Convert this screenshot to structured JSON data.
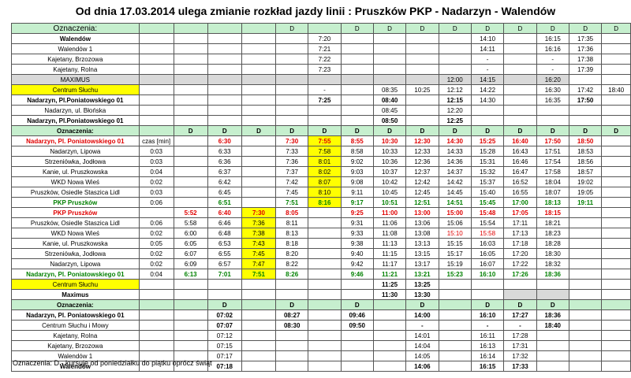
{
  "title": "Od dnia 17.03.2014 ulega zmianie rozkład jazdy linii : Pruszków PKP  - Nadarzyn - Walendów",
  "footnote": "Oznaczenia: D - kursuje od poniedziałku do piątku oprócz świąt",
  "colors": {
    "header_green": "#c6efce",
    "highlight_yellow": "#ffff00",
    "shade_grey": "#d9d9d9",
    "red": "#e00000",
    "green": "#008000"
  },
  "rows": [
    {
      "hdr": true,
      "cells": [
        {
          "t": "Oznaczenia:",
          "c": "big"
        },
        "",
        "",
        "",
        "",
        "",
        "D",
        "",
        "D",
        "D",
        "D",
        "D",
        "D",
        "D",
        "D",
        "D",
        "D"
      ]
    },
    {
      "cells": [
        {
          "t": "Walendów",
          "c": "b"
        },
        "",
        "",
        "",
        "",
        "",
        "7:20",
        "",
        "",
        "",
        "",
        "14:10",
        "",
        "16:15",
        "17:35",
        ""
      ]
    },
    {
      "cells": [
        "Walendów 1",
        "",
        "",
        "",
        "",
        "",
        "7:21",
        "",
        "",
        "",
        "",
        "14:11",
        "",
        "16:16",
        "17:36",
        ""
      ]
    },
    {
      "cells": [
        "Kajetany, Brzozowa",
        "",
        "",
        "",
        "",
        "",
        "7:22",
        "",
        "",
        "",
        "",
        "-",
        "",
        "-",
        "17:38",
        ""
      ]
    },
    {
      "cells": [
        "Kajetany, Rolna",
        "",
        "",
        "",
        "",
        "",
        "7:23",
        "",
        "",
        "",
        "",
        "-",
        "",
        "-",
        "17:39",
        ""
      ]
    },
    {
      "cells": [
        {
          "t": "MAXIMUS",
          "c": "gry"
        },
        {
          "t": "",
          "c": "gry"
        },
        {
          "t": "",
          "c": "gry"
        },
        {
          "t": "",
          "c": "gry"
        },
        {
          "t": "",
          "c": "gry"
        },
        {
          "t": "",
          "c": "gry"
        },
        {
          "t": "",
          "c": "gry"
        },
        {
          "t": "",
          "c": "gry"
        },
        {
          "t": "",
          "c": "gry"
        },
        {
          "t": "",
          "c": "gry"
        },
        {
          "t": "12:00",
          "c": "gry"
        },
        {
          "t": "14:15",
          "c": "gry"
        },
        {
          "t": "",
          "c": "gry"
        },
        {
          "t": "16:20",
          "c": "gry"
        },
        "",
        ""
      ]
    },
    {
      "cells": [
        {
          "t": "Centrum Słuchu",
          "c": "yel"
        },
        "",
        "",
        "",
        "",
        "",
        "-",
        "",
        "08:35",
        "10:25",
        "12:12",
        "14:22",
        "",
        "16:30",
        "17:42",
        "18:40"
      ]
    },
    {
      "cells": [
        {
          "t": "Nadarzyn, Pl.Poniatowskiego 01",
          "c": "b"
        },
        "",
        "",
        "",
        "",
        "",
        {
          "t": "7:25",
          "c": "b"
        },
        "",
        {
          "t": "08:40",
          "c": "b"
        },
        "",
        {
          "t": "12:15",
          "c": "b"
        },
        "14:30",
        "",
        "16:35",
        {
          "t": "17:50",
          "c": "b"
        },
        ""
      ]
    },
    {
      "cells": [
        "Nadarzyn, ul. Błońska",
        "",
        "",
        "",
        "",
        "",
        "",
        "",
        "08:45",
        "",
        "12:20",
        "",
        "",
        "",
        "",
        ""
      ]
    },
    {
      "cells": [
        {
          "t": "Nadarzyn, Pl.Poniatowskiego 01",
          "c": "b"
        },
        "",
        "",
        "",
        "",
        "",
        "",
        "",
        {
          "t": "08:50",
          "c": "b"
        },
        "",
        {
          "t": "12:25",
          "c": "b"
        },
        "",
        "",
        "",
        "",
        ""
      ]
    },
    {
      "hdr": true,
      "cells": [
        {
          "t": "Oznaczenia:",
          "c": "b"
        },
        "",
        {
          "t": "D",
          "c": "b"
        },
        {
          "t": "D",
          "c": "b"
        },
        {
          "t": "D",
          "c": "b"
        },
        {
          "t": "D",
          "c": "b"
        },
        {
          "t": "D",
          "c": "b"
        },
        {
          "t": "D",
          "c": "b"
        },
        {
          "t": "D",
          "c": "b"
        },
        {
          "t": "D",
          "c": "b"
        },
        {
          "t": "D",
          "c": "b"
        },
        {
          "t": "D",
          "c": "b"
        },
        {
          "t": "D",
          "c": "b"
        },
        {
          "t": "D",
          "c": "b"
        },
        {
          "t": "D",
          "c": "b"
        },
        {
          "t": "D",
          "c": "b"
        }
      ]
    },
    {
      "cells": [
        {
          "t": "Nadarzyn, Pl. Poniatowskiego 01",
          "c": "b red"
        },
        "czas [min]",
        "",
        {
          "t": "6:30",
          "c": "b red"
        },
        "",
        {
          "t": "7:30",
          "c": "b red"
        },
        {
          "t": "7:55",
          "c": "b red yel"
        },
        {
          "t": "8:55",
          "c": "b red"
        },
        {
          "t": "10:30",
          "c": "b red"
        },
        {
          "t": "12:30",
          "c": "b red"
        },
        {
          "t": "14:30",
          "c": "b red"
        },
        {
          "t": "15:25",
          "c": "b red"
        },
        {
          "t": "16:40",
          "c": "b red"
        },
        {
          "t": "17:50",
          "c": "b red"
        },
        {
          "t": "18:50",
          "c": "b red"
        },
        ""
      ]
    },
    {
      "cells": [
        "Nadarzyn, Lipowa",
        "0:03",
        "",
        "6:33",
        "",
        "7:33",
        {
          "t": "7:58",
          "c": "yel"
        },
        "8:58",
        "10:33",
        "12:33",
        "14:33",
        "15:28",
        "16:43",
        "17:51",
        "18:53",
        ""
      ]
    },
    {
      "cells": [
        "Strzeniówka, Jodłowa",
        "0:03",
        "",
        "6:36",
        "",
        "7:36",
        {
          "t": "8:01",
          "c": "yel"
        },
        "9:02",
        "10:36",
        "12:36",
        "14:36",
        "15:31",
        "16:46",
        "17:54",
        "18:56",
        ""
      ]
    },
    {
      "cells": [
        "Kanie, ul. Pruszkowska",
        "0:04",
        "",
        "6:37",
        "",
        "7:37",
        {
          "t": "8:02",
          "c": "yel"
        },
        "9:03",
        "10:37",
        "12:37",
        "14:37",
        "15:32",
        "16:47",
        "17:58",
        "18:57",
        ""
      ]
    },
    {
      "cells": [
        "WKD Nowa Wieś",
        "0:02",
        "",
        "6:42",
        "",
        "7:42",
        {
          "t": "8:07",
          "c": "yel"
        },
        "9:08",
        "10:42",
        "12:42",
        "14:42",
        "15:37",
        "16:52",
        "18:04",
        "19:02",
        ""
      ]
    },
    {
      "cells": [
        "Pruszków, Osiedle Staszica Lidl",
        "0:03",
        "",
        "6:45",
        "",
        "7:45",
        {
          "t": "8:10",
          "c": "yel"
        },
        "9:11",
        "10:45",
        "12:45",
        "14:45",
        "15:40",
        "16:55",
        "18:07",
        "19:05",
        ""
      ]
    },
    {
      "cells": [
        {
          "t": "PKP Pruszków",
          "c": "b gn"
        },
        "0:06",
        "",
        {
          "t": "6:51",
          "c": "b gn"
        },
        "",
        {
          "t": "7:51",
          "c": "b gn"
        },
        {
          "t": "8:16",
          "c": "b gn yel"
        },
        {
          "t": "9:17",
          "c": "b gn"
        },
        {
          "t": "10:51",
          "c": "b gn"
        },
        {
          "t": "12:51",
          "c": "b gn"
        },
        {
          "t": "14:51",
          "c": "b gn"
        },
        {
          "t": "15:45",
          "c": "b gn"
        },
        {
          "t": "17:00",
          "c": "b gn"
        },
        {
          "t": "18:13",
          "c": "b gn"
        },
        {
          "t": "19:11",
          "c": "b gn"
        },
        ""
      ]
    },
    {
      "cells": [
        {
          "t": "PKP Pruszków",
          "c": "b red"
        },
        "",
        {
          "t": "5:52",
          "c": "b red"
        },
        {
          "t": "6:40",
          "c": "b red"
        },
        {
          "t": "7:30",
          "c": "b red yel"
        },
        {
          "t": "8:05",
          "c": "b red"
        },
        "",
        {
          "t": "9:25",
          "c": "b red"
        },
        {
          "t": "11:00",
          "c": "b red"
        },
        {
          "t": "13:00",
          "c": "b red"
        },
        {
          "t": "15:00",
          "c": "b red"
        },
        {
          "t": "15:48",
          "c": "b red"
        },
        {
          "t": "17:05",
          "c": "b red"
        },
        {
          "t": "18:15",
          "c": "b red"
        },
        "",
        ""
      ]
    },
    {
      "cells": [
        "Pruszków, Osiedle Staszica Lidl",
        "0:06",
        "5:58",
        "6:46",
        {
          "t": "7:36",
          "c": "yel"
        },
        "8:11",
        "",
        "9:31",
        "11:06",
        "13:06",
        "15:06",
        "15:54",
        "17:11",
        "18:21",
        "",
        ""
      ]
    },
    {
      "cells": [
        "WKD Nowa Wieś",
        "0:02",
        "6:00",
        "6:48",
        {
          "t": "7:38",
          "c": "yel"
        },
        "8:13",
        "",
        "9:33",
        "11:08",
        "13:08",
        {
          "t": "15:10",
          "c": "red"
        },
        {
          "t": "15:58",
          "c": "red"
        },
        "17:13",
        "18:23",
        "",
        ""
      ]
    },
    {
      "cells": [
        "Kanie, ul. Pruszkowska",
        "0:05",
        "6:05",
        "6:53",
        {
          "t": "7:43",
          "c": "yel"
        },
        "8:18",
        "",
        "9:38",
        "11:13",
        "13:13",
        "15:15",
        "16:03",
        "17:18",
        "18:28",
        "",
        ""
      ]
    },
    {
      "cells": [
        "Strzeniówka, Jodłowa",
        "0:02",
        "6:07",
        "6:55",
        {
          "t": "7:45",
          "c": "yel"
        },
        "8:20",
        "",
        "9:40",
        "11:15",
        "13:15",
        "15:17",
        "16:05",
        "17:20",
        "18:30",
        "",
        ""
      ]
    },
    {
      "cells": [
        "Nadarzyn, Lipowa",
        "0:02",
        "6:09",
        "6:57",
        {
          "t": "7:47",
          "c": "yel"
        },
        "8:22",
        "",
        "9:42",
        "11:17",
        "13:17",
        "15:19",
        "16:07",
        "17:22",
        "18:32",
        "",
        ""
      ]
    },
    {
      "cells": [
        {
          "t": "Nadarzyn, Pl. Poniatowskiego 01",
          "c": "b gn"
        },
        "0:04",
        {
          "t": "6:13",
          "c": "b gn"
        },
        {
          "t": "7:01",
          "c": "b gn"
        },
        {
          "t": "7:51",
          "c": "b gn yel"
        },
        {
          "t": "8:26",
          "c": "b gn"
        },
        "",
        {
          "t": "9:46",
          "c": "b gn"
        },
        {
          "t": "11:21",
          "c": "b gn"
        },
        {
          "t": "13:21",
          "c": "b gn"
        },
        {
          "t": "15:23",
          "c": "b gn"
        },
        {
          "t": "16:10",
          "c": "b gn"
        },
        {
          "t": "17:26",
          "c": "b gn"
        },
        {
          "t": "18:36",
          "c": "b gn"
        },
        "",
        ""
      ]
    },
    {
      "cells": [
        {
          "t": "Centrum Słuchu",
          "c": "yel"
        },
        "",
        "",
        "",
        "",
        "",
        "",
        "",
        {
          "t": "11:25",
          "c": "b"
        },
        {
          "t": "13:25",
          "c": "b"
        },
        "",
        "",
        "",
        "",
        "",
        ""
      ]
    },
    {
      "cells": [
        {
          "t": "Maximus",
          "c": "b"
        },
        "",
        "",
        "",
        "",
        "",
        "",
        "",
        {
          "t": "11:30",
          "c": "b"
        },
        {
          "t": "13:30",
          "c": "b"
        },
        "",
        "",
        {
          "t": "",
          "c": "gry"
        },
        {
          "t": "",
          "c": "gry"
        },
        "",
        ""
      ]
    },
    {
      "hdr": true,
      "cells": [
        {
          "t": "Oznaczenia:",
          "c": "b"
        },
        "",
        "",
        {
          "t": "D",
          "c": "b"
        },
        "",
        {
          "t": "D",
          "c": "b"
        },
        "",
        {
          "t": "D",
          "c": "b"
        },
        "",
        {
          "t": "D",
          "c": "b"
        },
        "",
        {
          "t": "D",
          "c": "b"
        },
        {
          "t": "D",
          "c": "b"
        },
        {
          "t": "D",
          "c": "b"
        },
        "",
        ""
      ]
    },
    {
      "cells": [
        {
          "t": "Nadarzyn, Pl. Poniatowskiego 01",
          "c": "b"
        },
        "",
        "",
        {
          "t": "07:02",
          "c": "b"
        },
        "",
        {
          "t": "08:27",
          "c": "b"
        },
        "",
        {
          "t": "09:46",
          "c": "b"
        },
        "",
        {
          "t": "14:00",
          "c": "b"
        },
        "",
        {
          "t": "16:10",
          "c": "b"
        },
        {
          "t": "17:27",
          "c": "b"
        },
        {
          "t": "18:36",
          "c": "b"
        },
        "",
        ""
      ]
    },
    {
      "cells": [
        "Centrum Słuchu i Mowy",
        "",
        "",
        {
          "t": "07:07",
          "c": "b"
        },
        "",
        {
          "t": "08:30",
          "c": "b"
        },
        "",
        {
          "t": "09:50",
          "c": "b"
        },
        "",
        {
          "t": "-",
          "c": "b"
        },
        "",
        {
          "t": "-",
          "c": "b"
        },
        {
          "t": "-",
          "c": "b"
        },
        {
          "t": "18:40",
          "c": "b"
        },
        "",
        ""
      ]
    },
    {
      "cells": [
        "Kajetany, Rolna",
        "",
        "",
        "07:12",
        "",
        "",
        "",
        "",
        "",
        "14:01",
        "",
        "16:11",
        "17:28",
        "",
        "",
        ""
      ]
    },
    {
      "cells": [
        "Kajetany, Brzozowa",
        "",
        "",
        "07:15",
        "",
        "",
        "",
        "",
        "",
        "14:04",
        "",
        "16:13",
        "17:31",
        "",
        "",
        ""
      ]
    },
    {
      "cells": [
        "Walendów 1",
        "",
        "",
        "07:17",
        "",
        "",
        "",
        "",
        "",
        "14:05",
        "",
        "16:14",
        "17:32",
        "",
        "",
        ""
      ]
    },
    {
      "cells": [
        {
          "t": "Walendów",
          "c": "b"
        },
        "",
        "",
        {
          "t": "07:18",
          "c": "b"
        },
        "",
        "",
        "",
        "",
        "",
        {
          "t": "14:06",
          "c": "b"
        },
        "",
        {
          "t": "16:15",
          "c": "b"
        },
        {
          "t": "17:33",
          "c": "b"
        },
        "",
        "",
        ""
      ]
    }
  ]
}
